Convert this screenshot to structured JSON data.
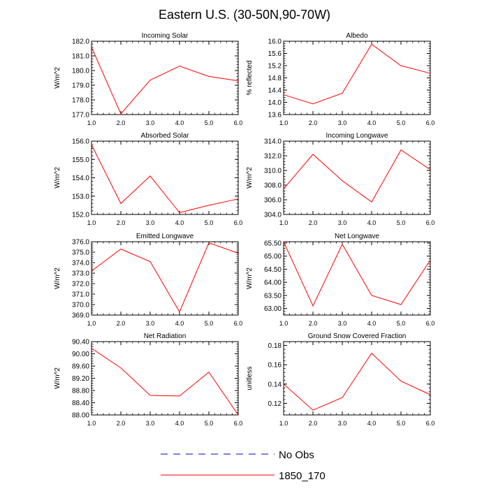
{
  "title": "Eastern U.S. (30-50N,90-70W)",
  "x_ticks": [
    "1.0",
    "2.0",
    "3.0",
    "4.0",
    "5.0",
    "6.0"
  ],
  "legend": [
    {
      "label": "No Obs",
      "color": "#0000cc",
      "style": "dashed"
    },
    {
      "label": "1850_170",
      "color": "#ff0000",
      "style": "solid"
    }
  ],
  "chart_data": [
    {
      "type": "line",
      "title": "Incoming Solar",
      "ylabel": "W/m^2",
      "xlim": [
        1,
        6
      ],
      "ylim": [
        177.0,
        182.0
      ],
      "yticks": [
        "177.0",
        "178.0",
        "179.0",
        "180.0",
        "181.0",
        "182.0"
      ],
      "x": [
        1,
        2,
        3,
        4,
        5,
        6
      ],
      "series": [
        {
          "name": "1850_170",
          "color": "#ff0000",
          "values": [
            181.6,
            177.05,
            179.35,
            180.3,
            179.6,
            179.3
          ]
        }
      ]
    },
    {
      "type": "line",
      "title": "Albedo",
      "ylabel": "% reflected",
      "xlim": [
        1,
        6
      ],
      "ylim": [
        13.6,
        16.0
      ],
      "yticks": [
        "13.6",
        "14.0",
        "14.4",
        "14.8",
        "15.2",
        "15.6",
        "16.0"
      ],
      "x": [
        1,
        2,
        3,
        4,
        5,
        6
      ],
      "series": [
        {
          "name": "1850_170",
          "color": "#ff0000",
          "values": [
            14.25,
            13.95,
            14.3,
            15.9,
            15.2,
            14.95
          ]
        }
      ]
    },
    {
      "type": "line",
      "title": "Absorbed Solar",
      "ylabel": "W/m^2",
      "xlim": [
        1,
        6
      ],
      "ylim": [
        152.0,
        156.0
      ],
      "yticks": [
        "152.0",
        "153.0",
        "154.0",
        "155.0",
        "156.0"
      ],
      "x": [
        1,
        2,
        3,
        4,
        5,
        6
      ],
      "series": [
        {
          "name": "1850_170",
          "color": "#ff0000",
          "values": [
            155.8,
            152.6,
            154.1,
            152.1,
            152.5,
            152.85
          ]
        }
      ]
    },
    {
      "type": "line",
      "title": "Incoming Longwave",
      "ylabel": "W/m^2",
      "xlim": [
        1,
        6
      ],
      "ylim": [
        304.0,
        314.0
      ],
      "yticks": [
        "304.0",
        "306.0",
        "308.0",
        "310.0",
        "312.0",
        "314.0"
      ],
      "x": [
        1,
        2,
        3,
        4,
        5,
        6
      ],
      "series": [
        {
          "name": "1850_170",
          "color": "#ff0000",
          "values": [
            307.5,
            312.2,
            308.6,
            305.7,
            312.8,
            310.1
          ]
        }
      ]
    },
    {
      "type": "line",
      "title": "Emitted Longwave",
      "ylabel": "W/m^2",
      "xlim": [
        1,
        6
      ],
      "ylim": [
        369.0,
        376.0
      ],
      "yticks": [
        "369.0",
        "370.0",
        "371.0",
        "372.0",
        "373.0",
        "374.0",
        "375.0",
        "376.0"
      ],
      "x": [
        1,
        2,
        3,
        4,
        5,
        6
      ],
      "series": [
        {
          "name": "1850_170",
          "color": "#ff0000",
          "values": [
            373.2,
            375.3,
            374.1,
            369.3,
            375.9,
            374.9
          ]
        }
      ]
    },
    {
      "type": "line",
      "title": "Net Longwave",
      "ylabel": "W/m^2",
      "xlim": [
        1,
        6
      ],
      "ylim": [
        62.75,
        65.55
      ],
      "yticks": [
        "63.00",
        "63.50",
        "64.00",
        "64.50",
        "65.00",
        "65.50"
      ],
      "x": [
        1,
        2,
        3,
        4,
        5,
        6
      ],
      "series": [
        {
          "name": "1850_170",
          "color": "#ff0000",
          "values": [
            65.55,
            63.1,
            65.45,
            63.5,
            63.15,
            64.85
          ]
        }
      ]
    },
    {
      "type": "line",
      "title": "Net Radiation",
      "ylabel": "W/m^2",
      "xlim": [
        1,
        6
      ],
      "ylim": [
        88.0,
        90.4
      ],
      "yticks": [
        "88.00",
        "88.40",
        "88.80",
        "89.20",
        "89.60",
        "90.00",
        "90.40"
      ],
      "x": [
        1,
        2,
        3,
        4,
        5,
        6
      ],
      "series": [
        {
          "name": "1850_170",
          "color": "#ff0000",
          "values": [
            90.18,
            89.54,
            88.64,
            88.62,
            89.4,
            88.0
          ]
        }
      ]
    },
    {
      "type": "line",
      "title": "Ground Snow Covered Fraction",
      "ylabel": "unitless",
      "xlim": [
        1,
        6
      ],
      "ylim": [
        0.108,
        0.184
      ],
      "yticks": [
        "0.12",
        "0.14",
        "0.16",
        "0.18"
      ],
      "x": [
        1,
        2,
        3,
        4,
        5,
        6
      ],
      "series": [
        {
          "name": "1850_170",
          "color": "#ff0000",
          "values": [
            0.14,
            0.113,
            0.126,
            0.172,
            0.143,
            0.129
          ]
        }
      ]
    }
  ]
}
